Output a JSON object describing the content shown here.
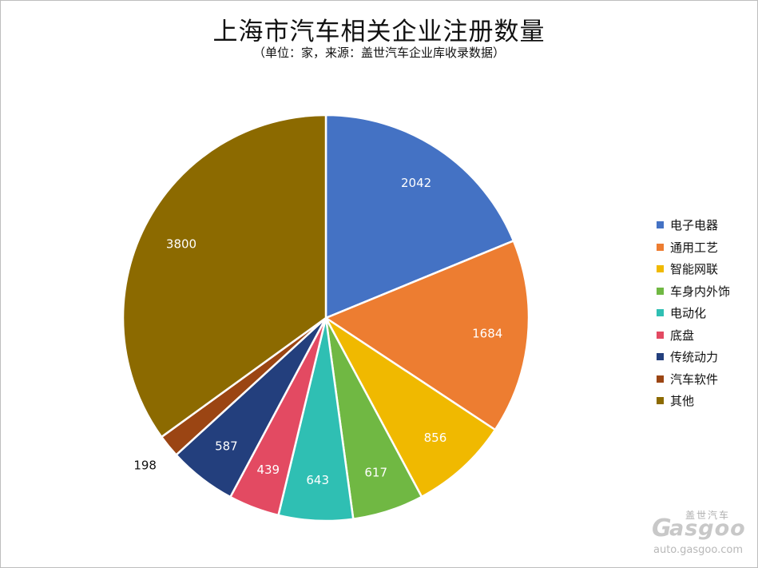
{
  "chart_data": {
    "type": "pie",
    "title": "上海市汽车相关企业注册数量",
    "subtitle": "（单位：家，来源：盖世汽车企业库收录数据）",
    "categories": [
      "电子电器",
      "通用工艺",
      "智能网联",
      "车身内外饰",
      "电动化",
      "底盘",
      "传统动力",
      "汽车软件",
      "其他"
    ],
    "values": [
      2042,
      1684,
      856,
      617,
      643,
      439,
      587,
      198,
      3800
    ],
    "colors": [
      "#4472c4",
      "#ed7d31",
      "#f0b900",
      "#70b843",
      "#2fbfb3",
      "#e34a62",
      "#233f7d",
      "#9b4513",
      "#8c6a00"
    ],
    "legend_position": "right",
    "data_labels": true
  },
  "watermark": {
    "brand_cn": "盖世汽车",
    "brand_en": "asgoo",
    "brand_g": "G",
    "url": "auto.gasgoo.com"
  }
}
